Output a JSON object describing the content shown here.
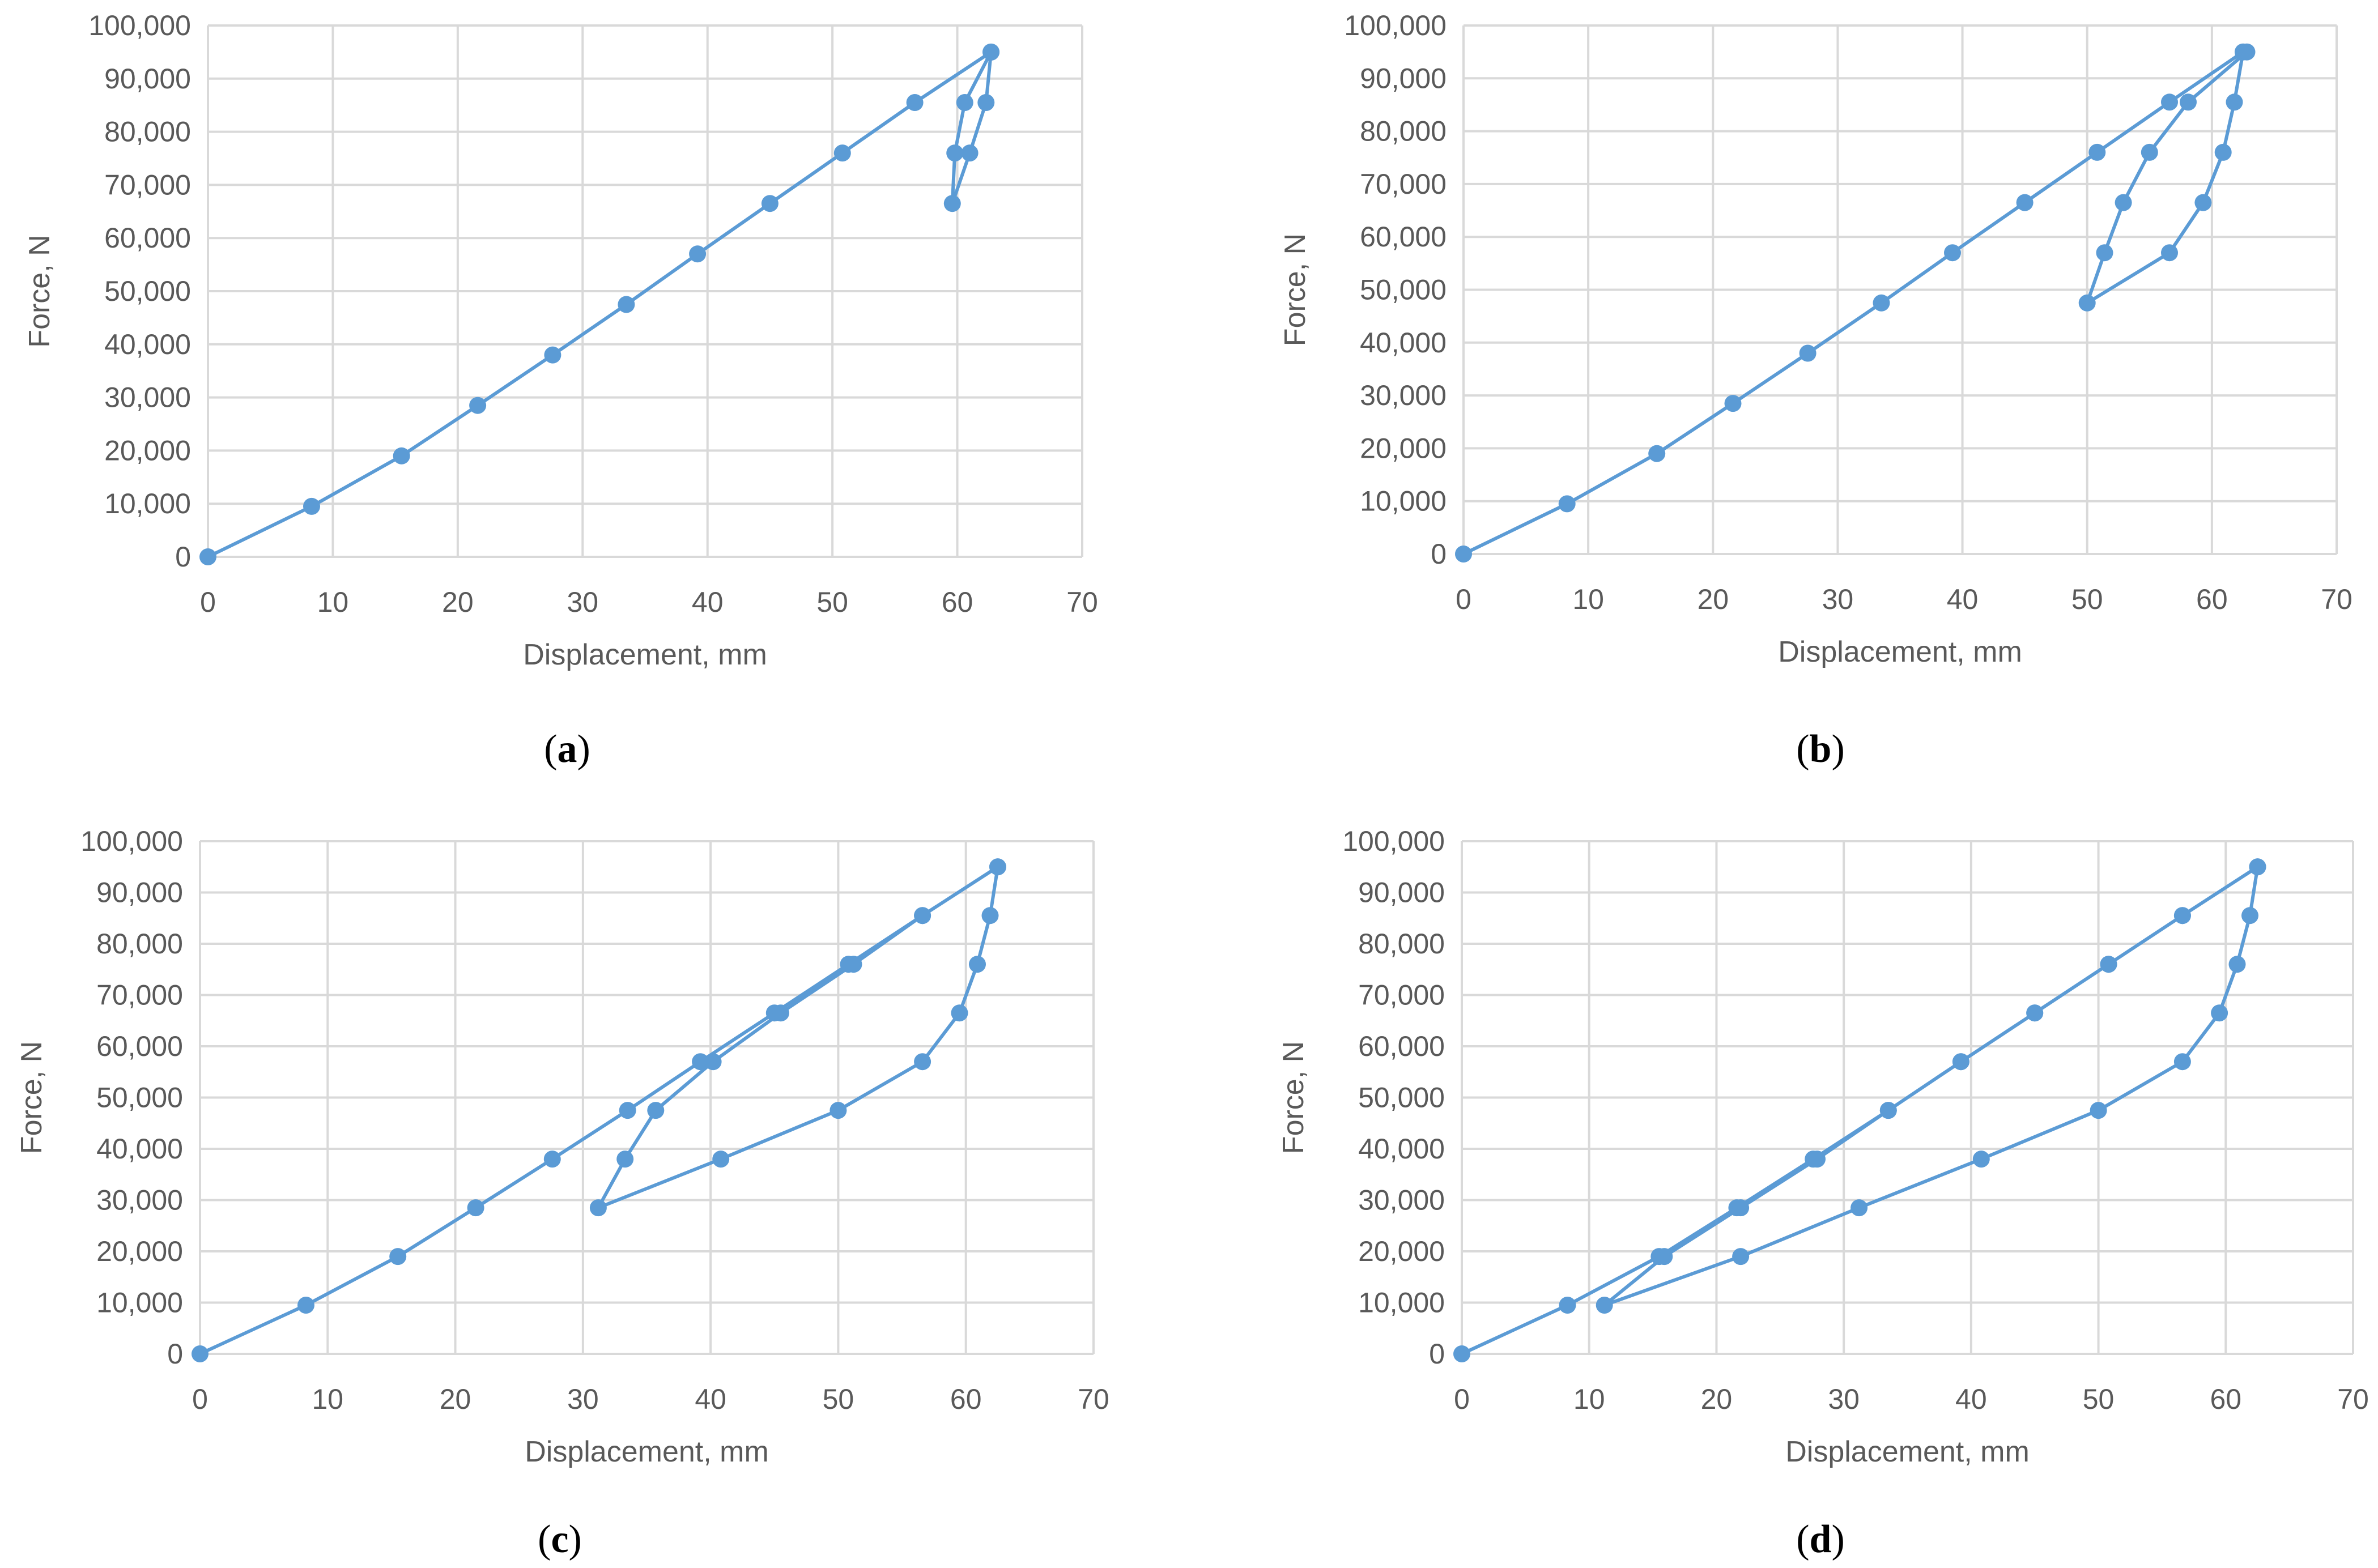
{
  "chart_data": [
    {
      "type": "line",
      "panel_label": "a",
      "xlabel": "Displacement, mm",
      "ylabel": "Force, N",
      "xlim": [
        0,
        70
      ],
      "ylim": [
        0,
        100000
      ],
      "xticks": [
        "0",
        "10",
        "20",
        "30",
        "40",
        "50",
        "60",
        "70"
      ],
      "yticks": [
        "0",
        "10,000",
        "20,000",
        "30,000",
        "40,000",
        "50,000",
        "60,000",
        "70,000",
        "80,000",
        "90,000",
        "100,000"
      ],
      "grid": true,
      "legend": "none",
      "series": [
        {
          "x": [
            0,
            8.3,
            15.5,
            21.6,
            27.6,
            33.5,
            39.2,
            45.0,
            50.8,
            56.6,
            62.7,
            62.3,
            61.0,
            59.6,
            59.8,
            60.6,
            62.7
          ],
          "y": [
            0,
            9500,
            19000,
            28500,
            38000,
            47500,
            57000,
            66500,
            76000,
            85500,
            95000,
            85500,
            76000,
            66500,
            76000,
            85500,
            95000
          ]
        }
      ]
    },
    {
      "type": "line",
      "panel_label": "b",
      "xlabel": "Displacement, mm",
      "ylabel": "Force, N",
      "xlim": [
        0,
        70
      ],
      "ylim": [
        0,
        100000
      ],
      "xticks": [
        "0",
        "10",
        "20",
        "30",
        "40",
        "50",
        "60",
        "70"
      ],
      "yticks": [
        "0",
        "10,000",
        "20,000",
        "30,000",
        "40,000",
        "50,000",
        "60,000",
        "70,000",
        "80,000",
        "90,000",
        "100,000"
      ],
      "grid": true,
      "legend": "none",
      "series": [
        {
          "x": [
            0,
            8.3,
            15.5,
            21.6,
            27.6,
            33.5,
            39.2,
            45.0,
            50.8,
            56.6,
            62.5,
            61.8,
            60.9,
            59.3,
            56.6,
            50.0,
            51.4,
            52.9,
            55.0,
            58.1,
            62.8
          ],
          "y": [
            0,
            9500,
            19000,
            28500,
            38000,
            47500,
            57000,
            66500,
            76000,
            85500,
            95000,
            85500,
            76000,
            66500,
            57000,
            47500,
            57000,
            66500,
            76000,
            85500,
            95000
          ]
        }
      ]
    },
    {
      "type": "line",
      "panel_label": "c",
      "xlabel": "Displacement, mm",
      "ylabel": "Force, N",
      "xlim": [
        0,
        70
      ],
      "ylim": [
        0,
        100000
      ],
      "xticks": [
        "0",
        "10",
        "20",
        "30",
        "40",
        "50",
        "60",
        "70"
      ],
      "yticks": [
        "0",
        "10,000",
        "20,000",
        "30,000",
        "40,000",
        "50,000",
        "60,000",
        "70,000",
        "80,000",
        "90,000",
        "100,000"
      ],
      "grid": true,
      "legend": "none",
      "series": [
        {
          "x": [
            0,
            8.3,
            15.5,
            21.6,
            27.6,
            33.5,
            39.2,
            45.0,
            50.8,
            56.6,
            62.5,
            61.9,
            60.9,
            59.5,
            56.6,
            50.0,
            40.8,
            31.2,
            33.3,
            35.7,
            40.2,
            45.5,
            51.2,
            56.6,
            62.5
          ],
          "y": [
            0,
            9500,
            19000,
            28500,
            38000,
            47500,
            57000,
            66500,
            76000,
            85500,
            95000,
            85500,
            76000,
            66500,
            57000,
            47500,
            38000,
            28500,
            38000,
            47500,
            57000,
            66500,
            76000,
            85500,
            95000
          ]
        }
      ]
    },
    {
      "type": "line",
      "panel_label": "d",
      "xlabel": "Displacement, mm",
      "ylabel": "Force, N",
      "xlim": [
        0,
        70
      ],
      "ylim": [
        0,
        100000
      ],
      "xticks": [
        "0",
        "10",
        "20",
        "30",
        "40",
        "50",
        "60",
        "70"
      ],
      "yticks": [
        "0",
        "10,000",
        "20,000",
        "30,000",
        "40,000",
        "50,000",
        "60,000",
        "70,000",
        "80,000",
        "90,000",
        "100,000"
      ],
      "grid": true,
      "legend": "none",
      "series": [
        {
          "x": [
            0,
            8.3,
            15.5,
            21.6,
            27.6,
            33.5,
            39.2,
            45.0,
            50.8,
            56.6,
            62.5,
            61.9,
            60.9,
            59.5,
            56.6,
            50.0,
            40.8,
            31.2,
            21.9,
            11.2,
            15.9,
            21.9,
            27.9,
            33.5,
            39.2,
            45.0,
            50.8,
            56.6,
            62.5
          ],
          "y": [
            0,
            9500,
            19000,
            28500,
            38000,
            47500,
            57000,
            66500,
            76000,
            85500,
            95000,
            85500,
            76000,
            66500,
            57000,
            47500,
            38000,
            28500,
            19000,
            9500,
            19000,
            28500,
            38000,
            47500,
            57000,
            66500,
            76000,
            85500,
            95000
          ]
        }
      ]
    }
  ],
  "style": {
    "series_color": "#5b9bd5",
    "grid_color": "#d9d9d9",
    "text_color": "#595959"
  }
}
